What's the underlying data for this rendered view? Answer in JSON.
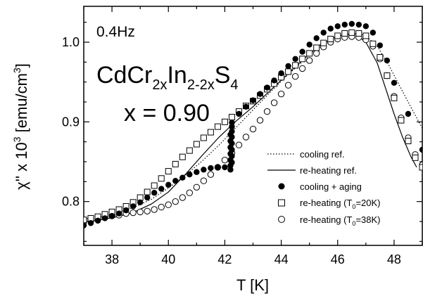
{
  "chart_data": {
    "type": "scatter",
    "annotations": {
      "frequency": "0.4Hz",
      "compound_base": "CdCr",
      "compound_sub1": "2x",
      "compound_mid": "In",
      "compound_sub2": "2-2x",
      "compound_end": "S",
      "compound_sub3": "4",
      "x_value": "x = 0.90"
    },
    "xlabel": "T [K]",
    "ylabel_base": "χ'' x 10",
    "ylabel_exp": "3",
    "ylabel_unit": " [emu/cm",
    "ylabel_unit_exp": "3",
    "ylabel_close": "]",
    "xlim": [
      37,
      49
    ],
    "ylim": [
      0.745,
      1.045
    ],
    "x_ticks": [
      {
        "value": 38,
        "label": "38"
      },
      {
        "value": 40,
        "label": "40"
      },
      {
        "value": 42,
        "label": "42"
      },
      {
        "value": 44,
        "label": "44"
      },
      {
        "value": 46,
        "label": "46"
      },
      {
        "value": 48,
        "label": "48"
      }
    ],
    "y_ticks": [
      {
        "value": 0.8,
        "label": "0.8"
      },
      {
        "value": 0.9,
        "label": "0.9"
      },
      {
        "value": 1.0,
        "label": "1.0"
      }
    ],
    "legend_position": "bottom-right",
    "series": [
      {
        "name": "cooling ref.",
        "style": "dotted-line",
        "x": [
          37.0,
          37.6,
          38.2,
          38.8,
          39.4,
          40.0,
          40.6,
          41.2,
          41.8,
          42.4,
          43.0,
          43.6,
          44.2,
          44.8,
          45.4,
          46.0,
          46.6,
          47.0,
          47.4,
          47.8,
          48.2,
          48.6,
          49.0
        ],
        "y": [
          0.778,
          0.781,
          0.786,
          0.793,
          0.803,
          0.817,
          0.833,
          0.851,
          0.871,
          0.893,
          0.915,
          0.937,
          0.958,
          0.977,
          0.994,
          1.006,
          1.012,
          1.008,
          0.995,
          0.972,
          0.945,
          0.918,
          0.892
        ]
      },
      {
        "name": "re-heating ref.",
        "style": "solid-line",
        "x": [
          37.0,
          37.6,
          38.2,
          38.8,
          39.4,
          40.0,
          40.6,
          41.2,
          41.8,
          42.4,
          43.0,
          43.6,
          44.2,
          44.8,
          45.4,
          46.0,
          46.6,
          47.0,
          47.4,
          47.7,
          48.0,
          48.3,
          48.6,
          48.8
        ],
        "y": [
          0.774,
          0.777,
          0.781,
          0.787,
          0.797,
          0.812,
          0.834,
          0.858,
          0.881,
          0.901,
          0.919,
          0.939,
          0.959,
          0.979,
          0.997,
          1.008,
          1.011,
          1.0,
          0.974,
          0.942,
          0.91,
          0.881,
          0.856,
          0.843
        ]
      },
      {
        "name": "cooling + aging",
        "style": "filled-circle",
        "x": [
          37.0,
          37.25,
          37.5,
          37.75,
          38.0,
          38.25,
          38.5,
          38.75,
          39.0,
          39.25,
          39.5,
          39.75,
          40.0,
          40.25,
          40.5,
          40.75,
          41.0,
          41.25,
          41.5,
          41.75,
          42.0,
          42.2,
          42.2,
          42.2,
          42.2,
          42.2,
          42.2,
          42.2,
          42.25,
          42.25,
          42.25,
          42.25,
          42.25,
          42.25,
          42.25,
          42.25,
          42.5,
          42.75,
          43.0,
          43.25,
          43.5,
          43.75,
          44.0,
          44.25,
          44.5,
          44.75,
          45.0,
          45.25,
          45.5,
          45.75,
          46.0,
          46.25,
          46.5,
          46.75,
          47.0,
          47.25,
          47.5,
          47.75,
          48.0,
          48.5,
          49.0
        ],
        "y": [
          0.77,
          0.773,
          0.776,
          0.779,
          0.782,
          0.785,
          0.789,
          0.794,
          0.799,
          0.805,
          0.811,
          0.816,
          0.821,
          0.826,
          0.83,
          0.834,
          0.837,
          0.84,
          0.842,
          0.843,
          0.843,
          0.84,
          0.845,
          0.852,
          0.86,
          0.868,
          0.876,
          0.884,
          0.849,
          0.857,
          0.865,
          0.873,
          0.881,
          0.888,
          0.894,
          0.899,
          0.91,
          0.919,
          0.927,
          0.935,
          0.943,
          0.952,
          0.961,
          0.97,
          0.979,
          0.988,
          0.997,
          1.005,
          1.012,
          1.017,
          1.02,
          1.022,
          1.023,
          1.022,
          1.02,
          1.012,
          0.996,
          0.977,
          0.949,
          0.91,
          0.865
        ]
      },
      {
        "name": "re-heating (T0=20K)",
        "style": "open-square",
        "x": [
          37.0,
          37.25,
          37.5,
          37.75,
          38.0,
          38.25,
          38.5,
          38.75,
          39.0,
          39.25,
          39.5,
          39.75,
          40.0,
          40.25,
          40.5,
          40.75,
          41.0,
          41.25,
          41.5,
          41.75,
          42.0,
          42.25,
          42.5,
          42.75,
          43.0,
          43.25,
          43.5,
          43.75,
          44.0,
          44.25,
          44.5,
          44.75,
          45.0,
          45.25,
          45.5,
          45.75,
          46.0,
          46.25,
          46.5,
          46.75,
          47.0,
          47.25,
          47.5,
          47.75,
          48.0,
          48.25,
          48.5,
          48.75,
          49.0
        ],
        "y": [
          0.777,
          0.779,
          0.781,
          0.784,
          0.787,
          0.79,
          0.794,
          0.799,
          0.805,
          0.812,
          0.82,
          0.829,
          0.838,
          0.847,
          0.856,
          0.864,
          0.872,
          0.88,
          0.887,
          0.894,
          0.9,
          0.906,
          0.913,
          0.92,
          0.926,
          0.933,
          0.941,
          0.948,
          0.956,
          0.963,
          0.971,
          0.979,
          0.986,
          0.993,
          0.999,
          1.004,
          1.008,
          1.011,
          1.012,
          1.011,
          1.008,
          0.998,
          0.981,
          0.958,
          0.93,
          0.902,
          0.876,
          0.855,
          0.843
        ]
      },
      {
        "name": "re-heating (T0=38K)",
        "style": "open-circle",
        "x": [
          37.0,
          37.25,
          37.5,
          37.75,
          38.0,
          38.25,
          38.5,
          38.75,
          39.0,
          39.25,
          39.5,
          39.75,
          40.0,
          40.25,
          40.5,
          40.75,
          41.0,
          41.25,
          41.5,
          41.75,
          42.0,
          42.25,
          42.5,
          42.75,
          43.0,
          43.25,
          43.5,
          43.75,
          44.0,
          44.25,
          44.5,
          44.75,
          45.0,
          45.25,
          45.5,
          45.75,
          46.0,
          46.25,
          46.5,
          46.75,
          47.0,
          47.25,
          47.5,
          47.75,
          48.0,
          48.25,
          48.5,
          48.75,
          49.0
        ],
        "y": [
          0.774,
          0.776,
          0.778,
          0.78,
          0.782,
          0.783,
          0.785,
          0.786,
          0.787,
          0.788,
          0.79,
          0.793,
          0.796,
          0.8,
          0.805,
          0.811,
          0.818,
          0.826,
          0.834,
          0.843,
          0.852,
          0.861,
          0.871,
          0.881,
          0.891,
          0.902,
          0.913,
          0.924,
          0.935,
          0.946,
          0.957,
          0.967,
          0.977,
          0.986,
          0.994,
          1.0,
          1.004,
          1.006,
          1.007,
          1.006,
          1.003,
          0.995,
          0.979,
          0.958,
          0.932,
          0.905,
          0.88,
          0.859,
          0.846
        ]
      }
    ],
    "legend": [
      {
        "style": "dotted-line",
        "label": "cooling ref."
      },
      {
        "style": "solid-line",
        "label": "re-heating ref."
      },
      {
        "style": "filled-circle",
        "label": "cooling + aging"
      },
      {
        "style": "open-square",
        "label_main": "re-heating (T",
        "label_sub": "0",
        "label_tail": "=20K)"
      },
      {
        "style": "open-circle",
        "label_main": "re-heating (T",
        "label_sub": "0",
        "label_tail": "=38K)"
      }
    ]
  }
}
